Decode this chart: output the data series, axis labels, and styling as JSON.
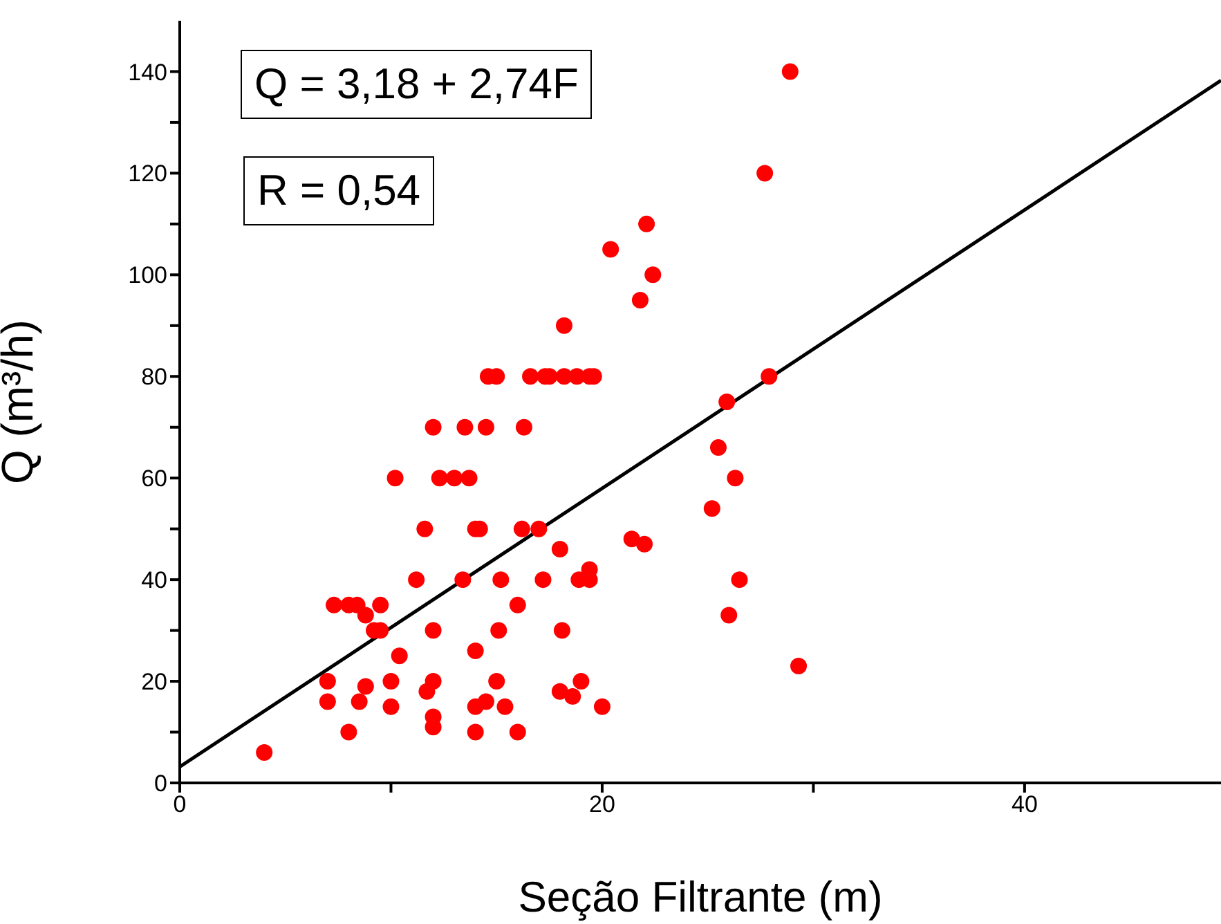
{
  "chart_data": {
    "type": "scatter",
    "xlabel": "Seção Filtrante (m)",
    "ylabel": "Q (m³/h)",
    "annotations": [
      "Q = 3,18 + 2,74F",
      "R = 0,54"
    ],
    "xlim": [
      0,
      49.3
    ],
    "ylim": [
      0,
      150
    ],
    "xticks": [
      0,
      {
        "value": 10,
        "label": null
      },
      20,
      {
        "value": 30,
        "label": null
      },
      40
    ],
    "yticks": [
      0,
      {
        "value": 10,
        "label": null
      },
      20,
      {
        "value": 30,
        "label": null
      },
      40,
      {
        "value": 50,
        "label": null
      },
      60,
      {
        "value": 70,
        "label": null
      },
      80,
      {
        "value": 90,
        "label": null
      },
      100,
      {
        "value": 110,
        "label": null
      },
      120,
      {
        "value": 130,
        "label": null
      },
      140
    ],
    "grid": false,
    "series": [
      {
        "marker": "circle",
        "color": "#ff0000",
        "x": [
          4,
          7,
          7,
          7.3,
          8,
          8,
          8.4,
          8.5,
          8.8,
          8.8,
          9.2,
          9.5,
          9.5,
          10,
          10,
          10.2,
          10.4,
          11.2,
          11.6,
          11.7,
          12,
          12,
          12,
          12,
          12,
          12.3,
          13,
          13.4,
          13.5,
          13.7,
          14,
          14.2,
          14,
          14,
          14,
          14.5,
          14.5,
          14.6,
          15,
          15.2,
          15.1,
          15,
          15.4,
          16,
          16,
          16.2,
          16.3,
          16.6,
          17,
          17.2,
          17.3,
          17.5,
          18,
          18,
          18.1,
          18.2,
          18.2,
          18.6,
          18.8,
          18.9,
          19,
          19.4,
          19.4,
          19.4,
          19.6,
          20,
          20.4,
          21.4,
          21.8,
          22,
          22.1,
          22.4,
          25.2,
          25.5,
          25.9,
          26,
          26.3,
          26.5,
          27.7,
          27.9,
          28.9,
          29.3
        ],
        "values": [
          6,
          20,
          16,
          35,
          35,
          10,
          35,
          16,
          19,
          33,
          30,
          35,
          30,
          20,
          15,
          60,
          25,
          40,
          50,
          18,
          70,
          30,
          20,
          13,
          11,
          60,
          60,
          40,
          70,
          60,
          50,
          50,
          26,
          15,
          10,
          16,
          70,
          80,
          80,
          40,
          30,
          20,
          15,
          35,
          10,
          50,
          70,
          80,
          50,
          40,
          80,
          80,
          46,
          18,
          30,
          90,
          80,
          17,
          80,
          40,
          20,
          42,
          40,
          80,
          80,
          15,
          105,
          48,
          95,
          47,
          110,
          100,
          54,
          66,
          75,
          33,
          60,
          40,
          120,
          80,
          140,
          23
        ]
      },
      {
        "type": "line",
        "marker": "none",
        "color": "#000000",
        "x": [
          0,
          49.3
        ],
        "values": [
          3.18,
          138.26
        ]
      }
    ]
  }
}
